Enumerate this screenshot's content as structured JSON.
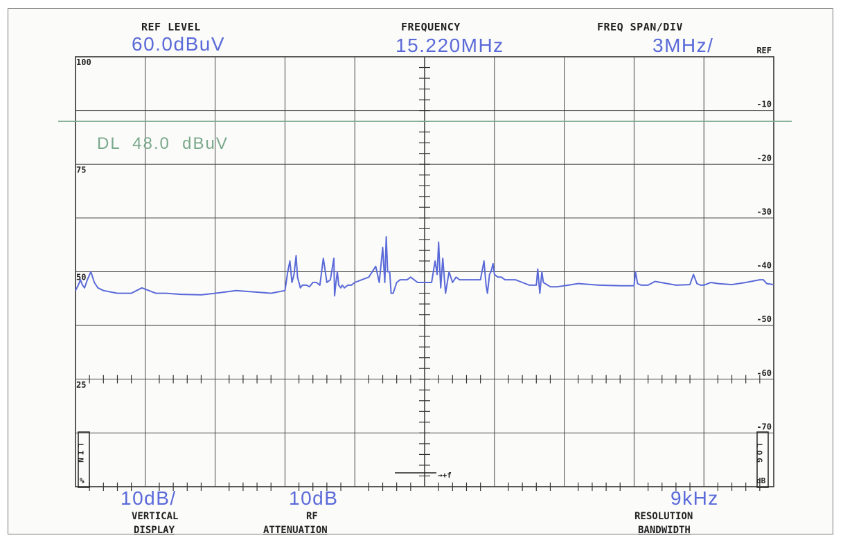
{
  "header": {
    "ref_level_label": "REF LEVEL",
    "ref_level_value": "60.0dBuV",
    "frequency_label": "FREQUENCY",
    "frequency_value": "15.220MHz",
    "span_label": "FREQ SPAN/DIV",
    "span_value": "3MHz/"
  },
  "footer": {
    "vertical_value": "10dB/",
    "vertical_label_1": "VERTICAL",
    "vertical_label_2": "DISPLAY",
    "rf_value": "10dB",
    "rf_label_1": "RF",
    "rf_label_2": "ATTENUATION",
    "rbw_value": "9kHz",
    "rbw_label_1": "RESOLUTION",
    "rbw_label_2": "BANDWIDTH"
  },
  "side": {
    "lin_label": "LIN",
    "lin_symbol": "%",
    "log_label": "LOG",
    "db_label": "dB",
    "delta_f_label": "→+f"
  },
  "display_line": {
    "text": "DL  48.0  dBuV",
    "value": 48.0,
    "color": "#7aa88a"
  },
  "chart_data": {
    "type": "line",
    "trace_color": "#5a6ad8",
    "grid": true,
    "xlim": [
      -5,
      5
    ],
    "ylim": [
      -80,
      0
    ],
    "left_ticks": [
      {
        "label": "100",
        "value": 0
      },
      {
        "label": "75",
        "value": -20
      },
      {
        "label": "50",
        "value": -40
      },
      {
        "label": "25",
        "value": -60
      }
    ],
    "right_ticks": [
      {
        "label": "REF",
        "value": 0
      },
      {
        "label": "-10",
        "value": -10
      },
      {
        "label": "-20",
        "value": -20
      },
      {
        "label": "-30",
        "value": -30
      },
      {
        "label": "-40",
        "value": -40
      },
      {
        "label": "-50",
        "value": -50
      },
      {
        "label": "-60",
        "value": -60
      },
      {
        "label": "-70",
        "value": -70
      }
    ],
    "x": [
      -5.0,
      -4.96,
      -4.93,
      -4.9,
      -4.87,
      -4.83,
      -4.78,
      -4.73,
      -4.68,
      -4.6,
      -4.4,
      -4.2,
      -4.05,
      -3.95,
      -3.85,
      -3.7,
      -3.5,
      -3.2,
      -3.0,
      -2.7,
      -2.4,
      -2.2,
      -2.0,
      -1.96,
      -1.93,
      -1.9,
      -1.87,
      -1.84,
      -1.82,
      -1.78,
      -1.75,
      -1.72,
      -1.69,
      -1.65,
      -1.6,
      -1.55,
      -1.5,
      -1.45,
      -1.4,
      -1.35,
      -1.3,
      -1.29,
      -1.27,
      -1.25,
      -1.23,
      -1.2,
      -1.18,
      -1.15,
      -1.1,
      -1.05,
      -1.0,
      -0.9,
      -0.8,
      -0.7,
      -0.65,
      -0.6,
      -0.57,
      -0.55,
      -0.53,
      -0.5,
      -0.48,
      -0.45,
      -0.4,
      -0.35,
      -0.3,
      -0.25,
      -0.2,
      -0.1,
      0.0,
      0.1,
      0.15,
      0.18,
      0.2,
      0.23,
      0.26,
      0.3,
      0.35,
      0.4,
      0.45,
      0.5,
      0.6,
      0.7,
      0.8,
      0.85,
      0.88,
      0.9,
      0.93,
      0.95,
      0.98,
      1.0,
      1.05,
      1.1,
      1.15,
      1.2,
      1.3,
      1.4,
      1.5,
      1.6,
      1.62,
      1.65,
      1.68,
      1.7,
      1.8,
      1.9,
      2.0,
      2.2,
      2.5,
      2.8,
      3.0,
      3.02,
      3.05,
      3.1,
      3.2,
      3.3,
      3.6,
      3.8,
      3.85,
      3.9,
      3.95,
      4.0,
      4.1,
      4.2,
      4.4,
      4.6,
      4.8,
      4.85,
      4.9,
      5.0
    ],
    "y": [
      -43.5,
      -42.5,
      -41.5,
      -42.5,
      -43,
      -41.5,
      -40,
      -42,
      -43,
      -43.5,
      -44,
      -44,
      -43,
      -43.5,
      -44,
      -44,
      -44.2,
      -44.3,
      -44,
      -43.5,
      -43.8,
      -44,
      -43.5,
      -40,
      -38,
      -42,
      -40.5,
      -37,
      -41,
      -43,
      -42.5,
      -42.5,
      -42.5,
      -42.8,
      -42,
      -42,
      -42.5,
      -37.5,
      -42,
      -41.5,
      -37.5,
      -44.5,
      -42,
      -40,
      -42.5,
      -43,
      -42.5,
      -43,
      -42.5,
      -42.5,
      -42,
      -41.5,
      -41,
      -39,
      -42,
      -35.5,
      -42,
      -33.5,
      -40,
      -40,
      -44,
      -44,
      -42,
      -41.5,
      -41.5,
      -41.5,
      -41,
      -42,
      -42,
      -42,
      -38,
      -40.5,
      -34.5,
      -43,
      -37.5,
      -44,
      -40,
      -42,
      -41,
      -41.5,
      -41.5,
      -41.5,
      -41.5,
      -38,
      -42.5,
      -44,
      -40.5,
      -40,
      -38.5,
      -40.5,
      -41,
      -41,
      -41.5,
      -41.5,
      -41.5,
      -42,
      -42.5,
      -42.5,
      -39.5,
      -44,
      -40,
      -42,
      -42.8,
      -42.8,
      -42.6,
      -42.2,
      -42.5,
      -42.6,
      -42.6,
      -40,
      -42.2,
      -42.5,
      -42.5,
      -41.8,
      -42.5,
      -42.4,
      -40.5,
      -42.2,
      -42.5,
      -42.5,
      -42,
      -42.2,
      -42.4,
      -42,
      -41.5,
      -41.5,
      -42.2,
      -42.4
    ]
  }
}
